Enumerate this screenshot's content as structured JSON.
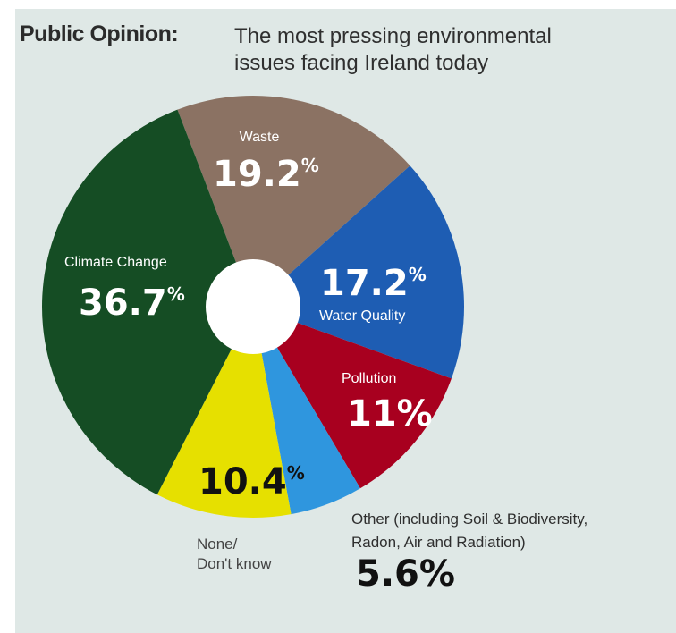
{
  "title": {
    "heading": "Public Opinion:",
    "subtitle_line1": "The most pressing environmental",
    "subtitle_line2": "issues facing Ireland today"
  },
  "colors": {
    "waste": "#8b7263",
    "water_quality": "#1e5db3",
    "pollution": "#a8001f",
    "other": "#2f96de",
    "none_dont_know": "#e6e000",
    "climate_change": "#154d24"
  },
  "labels": {
    "waste": {
      "name": "Waste",
      "value": "19.2",
      "pct": "%"
    },
    "water": {
      "name": "Water Quality",
      "value": "17.2",
      "pct": "%"
    },
    "pollution": {
      "name": "Pollution",
      "value": "11%"
    },
    "climate": {
      "name": "Climate Change",
      "value": "36.7",
      "pct": "%"
    },
    "none": {
      "line1": "None/",
      "line2": "Don't know",
      "value": "10.4",
      "pct": "%"
    },
    "other": {
      "line1": "Other (including Soil & Biodiversity,",
      "line2": "Radon, Air and Radiation)",
      "value": "5.6%"
    }
  },
  "chart_data": {
    "type": "pie",
    "title": "Public Opinion: The most pressing environmental issues facing Ireland today",
    "categories": [
      "Waste",
      "Water Quality",
      "Pollution",
      "Other (including Soil & Biodiversity, Radon, Air and Radiation)",
      "None/ Don't know",
      "Climate Change"
    ],
    "values": [
      19.2,
      17.2,
      11,
      5.6,
      10.4,
      36.7
    ],
    "unit": "%"
  }
}
